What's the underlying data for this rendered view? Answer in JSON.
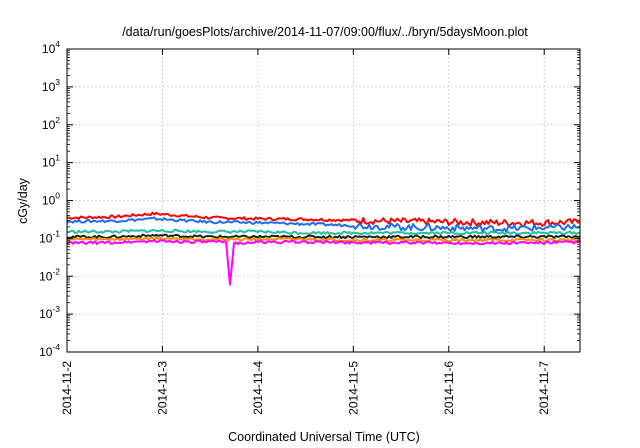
{
  "chart_data": {
    "type": "line",
    "title": "/data/run/goesPlots/archive/2014-11-07/09:00/flux/../bryn/5daysMoon.plot",
    "xlabel": "Coordinated Universal Time (UTC)",
    "ylabel": "cGy/day",
    "yscale": "log",
    "ylim": [
      0.0001,
      10000
    ],
    "y_ticks": [
      {
        "base": "10",
        "exp": "-4"
      },
      {
        "base": "10",
        "exp": "-3"
      },
      {
        "base": "10",
        "exp": "-2"
      },
      {
        "base": "10",
        "exp": "-1"
      },
      {
        "base": "10",
        "exp": "0"
      },
      {
        "base": "10",
        "exp": "1"
      },
      {
        "base": "10",
        "exp": "2"
      },
      {
        "base": "10",
        "exp": "3"
      },
      {
        "base": "10",
        "exp": "4"
      }
    ],
    "x_ticks": [
      "2014-11-2",
      "2014-11-3",
      "2014-11-4",
      "2014-11-5",
      "2014-11-6",
      "2014-11-7"
    ],
    "xlim": [
      "2014-11-02 00:00",
      "2014-11-07 09:00"
    ],
    "grid": true,
    "series": [
      {
        "color": "#ff0000",
        "x": [
          "2014-11-02 00:00",
          "2014-11-02 12:00",
          "2014-11-02 22:00",
          "2014-11-03 12:00",
          "2014-11-04 00:00",
          "2014-11-04 12:00",
          "2014-11-05 00:00",
          "2014-11-05 12:00",
          "2014-11-06 00:00",
          "2014-11-06 12:00",
          "2014-11-07 00:00",
          "2014-11-07 09:00"
        ],
        "values": [
          0.35,
          0.37,
          0.45,
          0.35,
          0.33,
          0.32,
          0.3,
          0.28,
          0.27,
          0.26,
          0.26,
          0.27
        ]
      },
      {
        "color": "#1e6ff0",
        "x": [
          "2014-11-02 00:00",
          "2014-11-02 12:00",
          "2014-11-02 22:00",
          "2014-11-03 12:00",
          "2014-11-04 00:00",
          "2014-11-04 12:00",
          "2014-11-05 00:00",
          "2014-11-05 12:00",
          "2014-11-06 00:00",
          "2014-11-06 12:00",
          "2014-11-07 00:00",
          "2014-11-07 09:00"
        ],
        "values": [
          0.28,
          0.29,
          0.33,
          0.27,
          0.26,
          0.24,
          0.22,
          0.2,
          0.19,
          0.18,
          0.19,
          0.2
        ]
      },
      {
        "color": "#20c0a0",
        "x": [
          "2014-11-02 00:00",
          "2014-11-02 12:00",
          "2014-11-02 22:00",
          "2014-11-03 12:00",
          "2014-11-04 00:00",
          "2014-11-04 12:00",
          "2014-11-05 00:00",
          "2014-11-05 12:00",
          "2014-11-06 00:00",
          "2014-11-06 12:00",
          "2014-11-07 00:00",
          "2014-11-07 09:00"
        ],
        "values": [
          0.15,
          0.15,
          0.16,
          0.15,
          0.15,
          0.14,
          0.14,
          0.14,
          0.14,
          0.14,
          0.14,
          0.14
        ]
      },
      {
        "color": "#202020",
        "x": [
          "2014-11-02 00:00",
          "2014-11-02 12:00",
          "2014-11-02 22:00",
          "2014-11-03 12:00",
          "2014-11-04 00:00",
          "2014-11-04 12:00",
          "2014-11-05 00:00",
          "2014-11-05 12:00",
          "2014-11-06 00:00",
          "2014-11-06 12:00",
          "2014-11-07 00:00",
          "2014-11-07 09:00"
        ],
        "values": [
          0.11,
          0.11,
          0.12,
          0.11,
          0.11,
          0.11,
          0.11,
          0.11,
          0.11,
          0.11,
          0.11,
          0.11
        ]
      },
      {
        "color": "#ff8c00",
        "x": [
          "2014-11-02 00:00",
          "2014-11-02 12:00",
          "2014-11-02 22:00",
          "2014-11-03 12:00",
          "2014-11-04 00:00",
          "2014-11-04 12:00",
          "2014-11-05 00:00",
          "2014-11-05 12:00",
          "2014-11-06 00:00",
          "2014-11-06 12:00",
          "2014-11-07 00:00",
          "2014-11-07 09:00"
        ],
        "values": [
          0.095,
          0.095,
          0.1,
          0.095,
          0.095,
          0.095,
          0.09,
          0.09,
          0.09,
          0.09,
          0.09,
          0.09
        ]
      },
      {
        "color": "#ff00ff",
        "x": [
          "2014-11-02 00:00",
          "2014-11-02 12:00",
          "2014-11-02 22:00",
          "2014-11-03 12:00",
          "2014-11-03 16:00",
          "2014-11-03 17:00",
          "2014-11-03 18:00",
          "2014-11-04 00:00",
          "2014-11-04 12:00",
          "2014-11-05 00:00",
          "2014-11-05 12:00",
          "2014-11-06 00:00",
          "2014-11-06 12:00",
          "2014-11-07 00:00",
          "2014-11-07 09:00"
        ],
        "values": [
          0.075,
          0.078,
          0.085,
          0.08,
          0.08,
          0.006,
          0.075,
          0.08,
          0.08,
          0.078,
          0.077,
          0.076,
          0.075,
          0.077,
          0.08
        ]
      }
    ]
  }
}
